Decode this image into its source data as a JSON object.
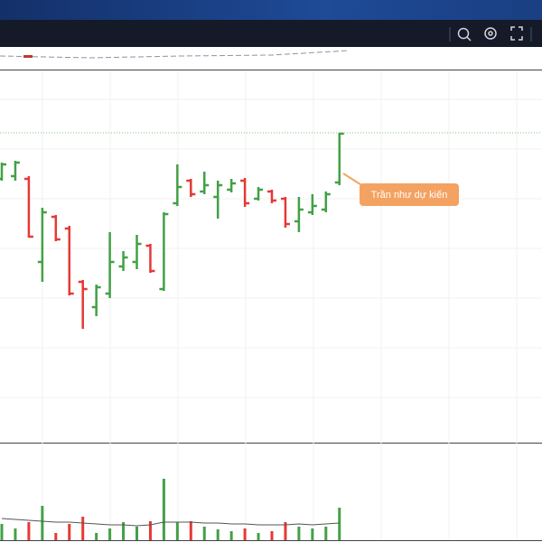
{
  "chart_data": {
    "type": "ohlc",
    "annotation": "Trần như dự kiến",
    "ylim": [
      0,
      412
    ],
    "up_color": "#43a047",
    "down_color": "#e53935",
    "open": [
      292,
      295,
      292,
      200,
      250,
      237,
      178,
      150,
      165,
      195,
      200,
      218,
      170,
      265,
      290,
      278,
      272,
      280,
      290,
      270,
      278,
      270,
      245,
      255,
      258,
      288
    ],
    "high": [
      310,
      312,
      295,
      260,
      252,
      240,
      180,
      175,
      233,
      212,
      230,
      220,
      255,
      308,
      292,
      300,
      290,
      292,
      293,
      283,
      280,
      272,
      272,
      275,
      278,
      343
    ],
    "low": [
      290,
      290,
      227,
      178,
      223,
      163,
      126,
      140,
      160,
      190,
      192,
      188,
      168,
      262,
      272,
      275,
      248,
      277,
      261,
      268,
      265,
      238,
      233,
      252,
      255,
      285
    ],
    "close": [
      308,
      310,
      228,
      255,
      225,
      165,
      170,
      172,
      200,
      205,
      220,
      190,
      253,
      283,
      275,
      285,
      285,
      287,
      265,
      280,
      268,
      242,
      258,
      262,
      275,
      342
    ],
    "volume": [
      18,
      13,
      20,
      38,
      8,
      18,
      26,
      8,
      13,
      20,
      15,
      21,
      68,
      20,
      21,
      15,
      12,
      10,
      13,
      8,
      10,
      20,
      15,
      13,
      15,
      36
    ],
    "volume_ma": [
      24,
      23,
      22,
      21,
      20,
      20,
      19,
      18,
      17,
      17,
      16,
      17,
      20,
      20,
      20,
      19,
      19,
      18,
      18,
      17,
      17,
      17,
      18,
      17,
      18,
      19
    ],
    "vlim": [
      0,
      103
    ]
  }
}
